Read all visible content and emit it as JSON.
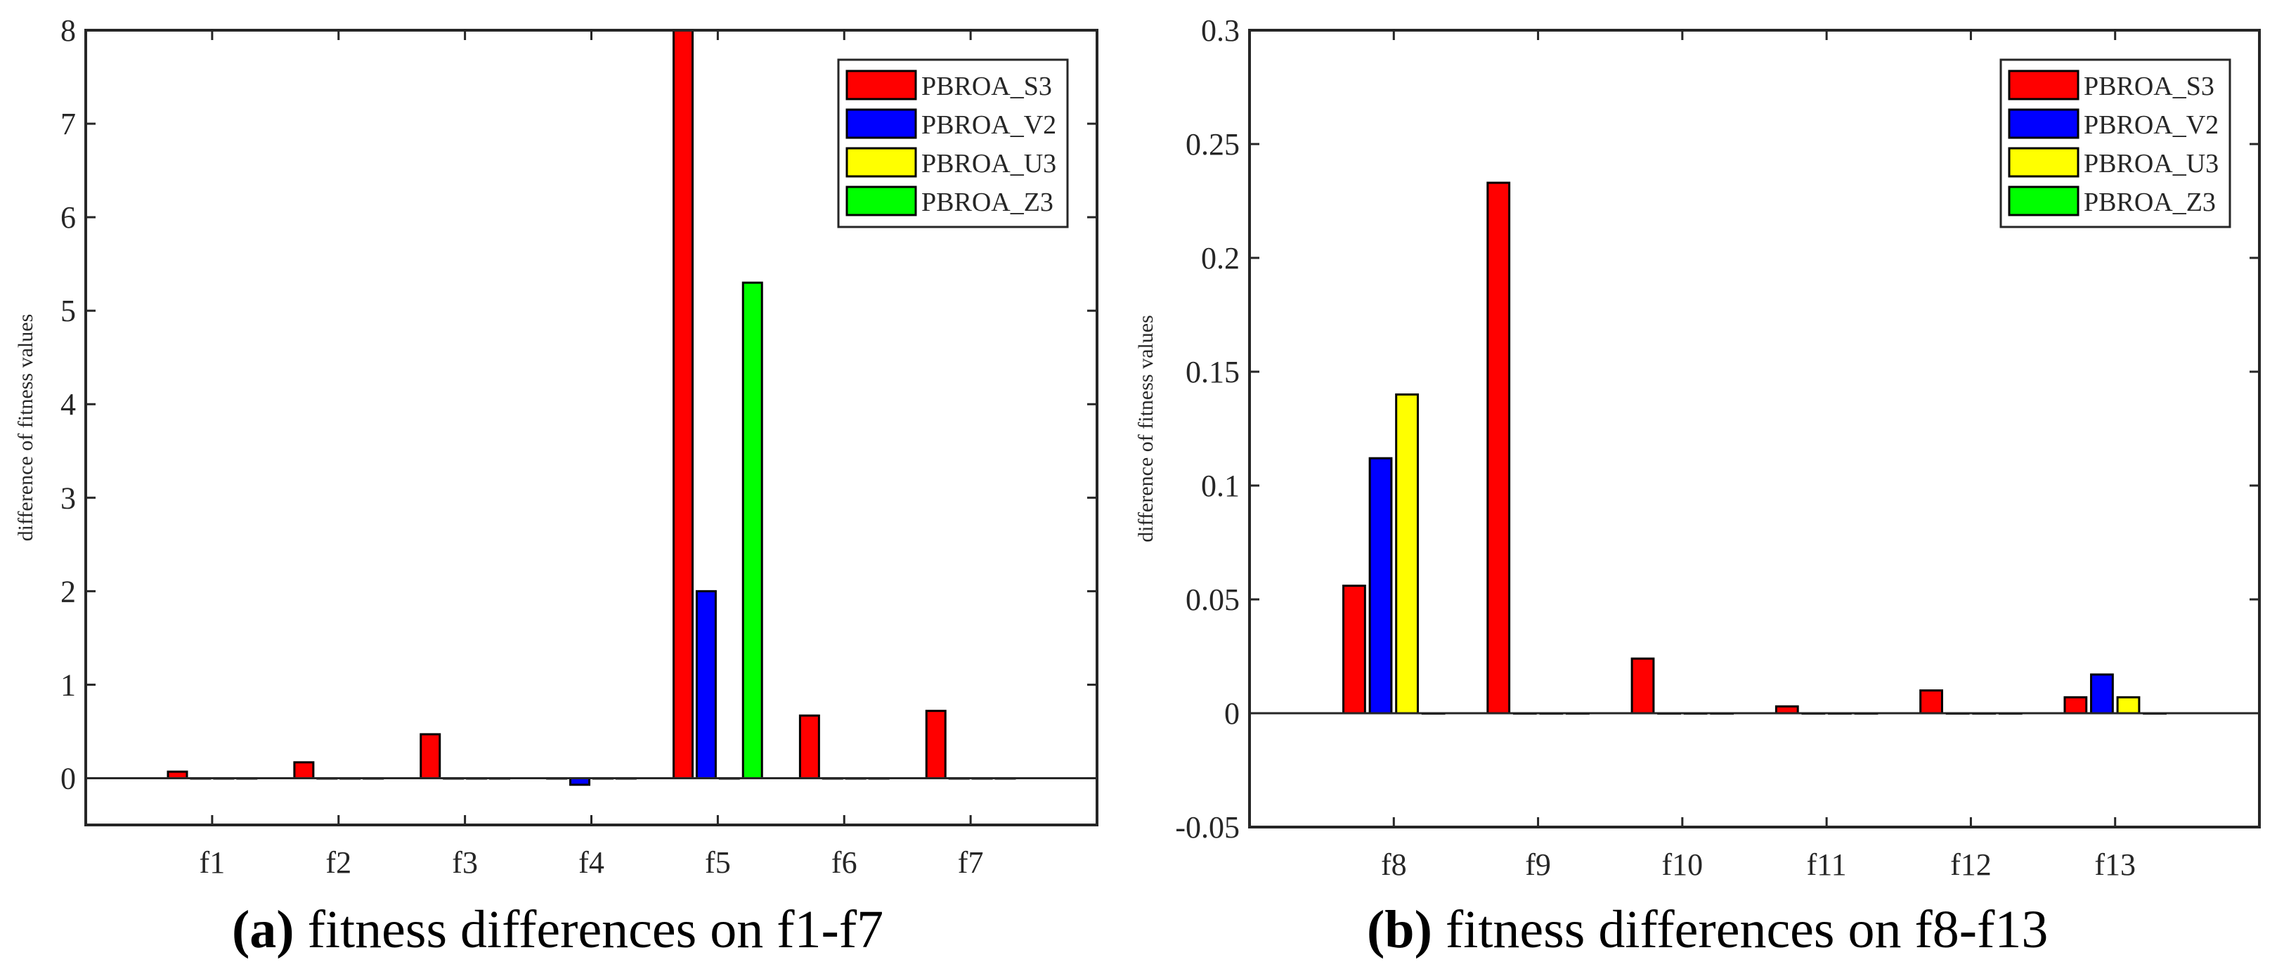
{
  "chart_data": [
    {
      "type": "bar",
      "caption_letter": "(a)",
      "caption_text": "fitness differences on f1-f7",
      "xlabel": "",
      "ylabel": "difference of fitness values",
      "categories": [
        "f1",
        "f2",
        "f3",
        "f4",
        "f5",
        "f6",
        "f7"
      ],
      "xlim": [
        0,
        8
      ],
      "ylim": [
        -0.5,
        8
      ],
      "yticks": [
        0,
        1,
        2,
        3,
        4,
        5,
        6,
        7,
        8
      ],
      "ytick_labels": [
        "0",
        "1",
        "2",
        "3",
        "4",
        "5",
        "6",
        "7",
        "8"
      ],
      "grid": false,
      "legend_placement": "top-right",
      "series": [
        {
          "name": "PBROA_S3",
          "color": "#ff0000",
          "values": [
            0.07,
            0.17,
            0.47,
            0,
            8.0,
            0.67,
            0.72
          ]
        },
        {
          "name": "PBROA_V2",
          "color": "#0000ff",
          "values": [
            0,
            0,
            0,
            -0.07,
            2.0,
            0,
            0
          ]
        },
        {
          "name": "PBROA_U3",
          "color": "#ffff00",
          "values": [
            0,
            0,
            0,
            0,
            0,
            0,
            0
          ]
        },
        {
          "name": "PBROA_Z3",
          "color": "#00ff00",
          "values": [
            0,
            0,
            0,
            0,
            5.3,
            0,
            0
          ]
        }
      ]
    },
    {
      "type": "bar",
      "caption_letter": "(b)",
      "caption_text": "fitness differences on f8-f13",
      "xlabel": "",
      "ylabel": "difference of fitness values",
      "categories": [
        "f8",
        "f9",
        "f10",
        "f11",
        "f12",
        "f13"
      ],
      "xlim": [
        0,
        7
      ],
      "ylim": [
        -0.05,
        0.3
      ],
      "yticks": [
        -0.05,
        0,
        0.05,
        0.1,
        0.15,
        0.2,
        0.25,
        0.3
      ],
      "ytick_labels": [
        "-0.05",
        "0",
        "0.05",
        "0.1",
        "0.15",
        "0.2",
        "0.25",
        "0.3"
      ],
      "grid": false,
      "legend_placement": "top-right",
      "series": [
        {
          "name": "PBROA_S3",
          "color": "#ff0000",
          "values": [
            0.056,
            0.233,
            0.024,
            0.003,
            0.01,
            0.007
          ]
        },
        {
          "name": "PBROA_V2",
          "color": "#0000ff",
          "values": [
            0.112,
            0,
            0,
            0,
            0,
            0.017
          ]
        },
        {
          "name": "PBROA_U3",
          "color": "#ffff00",
          "values": [
            0.14,
            0,
            0,
            0,
            0,
            0.007
          ]
        },
        {
          "name": "PBROA_Z3",
          "color": "#00ff00",
          "values": [
            0,
            0,
            0,
            0,
            0,
            0
          ]
        }
      ]
    }
  ]
}
